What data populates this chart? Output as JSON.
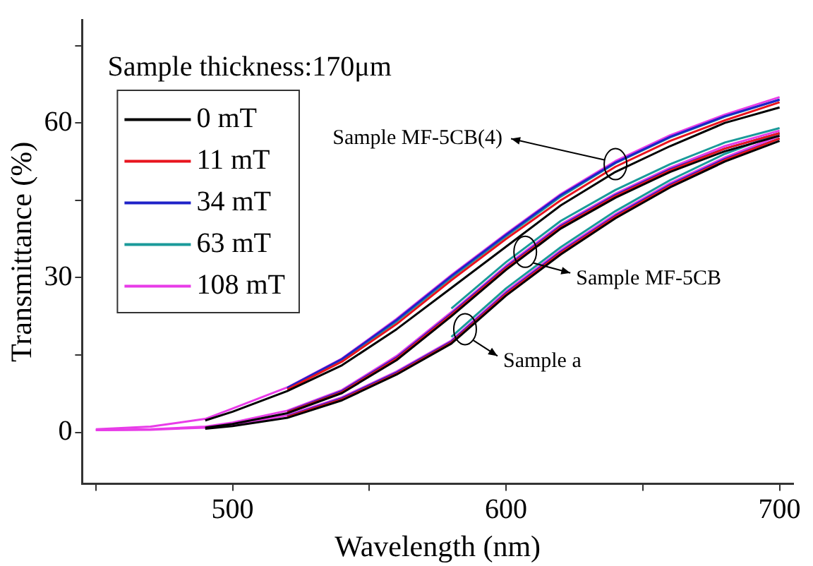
{
  "chart_data": {
    "type": "line",
    "xlabel": "Wavelength (nm)",
    "ylabel": "Transmittance (%)",
    "xlim": [
      445,
      705
    ],
    "ylim": [
      -10,
      80
    ],
    "xticks": [
      {
        "value": 450,
        "label": null
      },
      500,
      {
        "value": 550,
        "label": null
      },
      600,
      {
        "value": 650,
        "label": null
      },
      700
    ],
    "yticks": [
      0,
      {
        "value": 15,
        "label": null
      },
      30,
      {
        "value": 45,
        "label": null
      },
      60,
      {
        "value": 75,
        "label": null
      }
    ],
    "grid": false,
    "legend": "top left",
    "marker": "none",
    "line_style": "solid",
    "annotations": [
      "Sample thickness:170μm",
      {
        "text": "Sample MF-5CB(4)",
        "x": 640,
        "y": 52
      },
      {
        "text": "Sample MF-5CB",
        "x": 607,
        "y": 35
      },
      {
        "text": "Sample a",
        "x": 585,
        "y": 20
      }
    ],
    "series": [
      {
        "name": "0 mT",
        "color": "#000000",
        "x": [
          490,
          500,
          520,
          540,
          560,
          580,
          600,
          620,
          640,
          660,
          680,
          700
        ],
        "values": [
          2.3,
          4,
          8,
          13,
          20,
          28,
          36,
          44,
          50.5,
          55.5,
          60,
          63
        ]
      },
      {
        "name": "11 mT",
        "color": "#e8141e",
        "x": [
          520,
          540,
          560,
          580,
          600,
          620,
          640,
          660,
          680,
          700
        ],
        "values": [
          8.3,
          13.7,
          21,
          29.5,
          37.5,
          45,
          51.5,
          56.5,
          60.5,
          64
        ]
      },
      {
        "name": "34 mT",
        "color": "#1f22c8",
        "x": [
          520,
          540,
          560,
          580,
          600,
          620,
          640,
          660,
          680,
          700
        ],
        "values": [
          8.6,
          14.2,
          21.8,
          30.3,
          38.3,
          46,
          52.3,
          57.3,
          61.3,
          64.5
        ]
      },
      {
        "name": "63 mT",
        "color": "#1a9a9a",
        "x": [
          520,
          540,
          560,
          580,
          600,
          620,
          640,
          660,
          680,
          700
        ],
        "values": [
          8.5,
          14,
          21.5,
          30,
          38,
          45.7,
          52.2,
          57.2,
          61.2,
          64.5
        ]
      },
      {
        "name": "108 mT",
        "color": "#e83ce8",
        "x": [
          450,
          470,
          490,
          500,
          520,
          540,
          560,
          580,
          600,
          620,
          640,
          660,
          680,
          700
        ],
        "values": [
          0.6,
          1.1,
          2.6,
          4.6,
          8.7,
          14.3,
          22,
          30.5,
          38.5,
          46.2,
          52.6,
          57.6,
          61.6,
          65
        ]
      },
      {
        "color": "#000000",
        "x": [
          490,
          500,
          520,
          540,
          560,
          580,
          600,
          620,
          640,
          660,
          680,
          700
        ],
        "values": [
          0.9,
          1.6,
          3.7,
          7.6,
          14,
          22.5,
          31.5,
          39.5,
          45.5,
          50.5,
          54.5,
          57.5
        ]
      },
      {
        "color": "#e8141e",
        "x": [
          520,
          540,
          560,
          580,
          600,
          620,
          640,
          660,
          680,
          700
        ],
        "values": [
          3.9,
          7.8,
          14.3,
          22.8,
          31.8,
          39.8,
          45.8,
          50.8,
          55,
          58
        ]
      },
      {
        "color": "#1f22c8",
        "x": [
          520,
          540,
          560,
          580,
          600,
          620,
          640,
          660,
          680,
          700
        ],
        "values": [
          4,
          8,
          14.5,
          23,
          32,
          40,
          46,
          51,
          55,
          58
        ]
      },
      {
        "color": "#1a9a9a",
        "x": [
          580,
          600,
          620,
          640,
          660,
          680,
          700
        ],
        "values": [
          24,
          33,
          41,
          47,
          52,
          56.2,
          59
        ]
      },
      {
        "color": "#e83ce8",
        "x": [
          450,
          470,
          490,
          500,
          520,
          540,
          560,
          580,
          600,
          620,
          640,
          660,
          680,
          700
        ],
        "values": [
          0.4,
          0.6,
          1.1,
          1.9,
          4.2,
          8.2,
          14.8,
          23.3,
          32.3,
          40.3,
          46.3,
          51.3,
          55.5,
          58.5
        ]
      },
      {
        "color": "#000000",
        "x": [
          490,
          500,
          520,
          540,
          560,
          580,
          600,
          620,
          640,
          660,
          680,
          700
        ],
        "values": [
          0.7,
          1.2,
          2.8,
          6.2,
          11.2,
          17.2,
          26.5,
          34.5,
          41.5,
          47.5,
          52.5,
          56.5
        ]
      },
      {
        "color": "#e8141e",
        "x": [
          520,
          540,
          560,
          580,
          600,
          620,
          640,
          660,
          680,
          700
        ],
        "values": [
          3,
          6.4,
          11.4,
          17.4,
          26.8,
          34.8,
          41.8,
          47.8,
          52.8,
          57
        ]
      },
      {
        "color": "#1f22c8",
        "x": [
          520,
          540,
          560,
          580,
          600,
          620,
          640,
          660,
          680,
          700
        ],
        "values": [
          3.1,
          6.6,
          11.6,
          17.6,
          27,
          35,
          42,
          48,
          53,
          57
        ]
      },
      {
        "color": "#1a9a9a",
        "x": [
          580,
          600,
          620,
          640,
          660,
          680,
          700
        ],
        "values": [
          18.5,
          27.9,
          35.9,
          42.9,
          48.9,
          54,
          58
        ]
      },
      {
        "color": "#e83ce8",
        "x": [
          450,
          470,
          490,
          500,
          520,
          540,
          560,
          580,
          600,
          620,
          640,
          660,
          680,
          700
        ],
        "values": [
          0.4,
          0.5,
          0.9,
          1.4,
          3.3,
          6.8,
          11.8,
          17.8,
          27.3,
          35.3,
          42.3,
          48.3,
          53.3,
          57.5
        ]
      }
    ]
  }
}
